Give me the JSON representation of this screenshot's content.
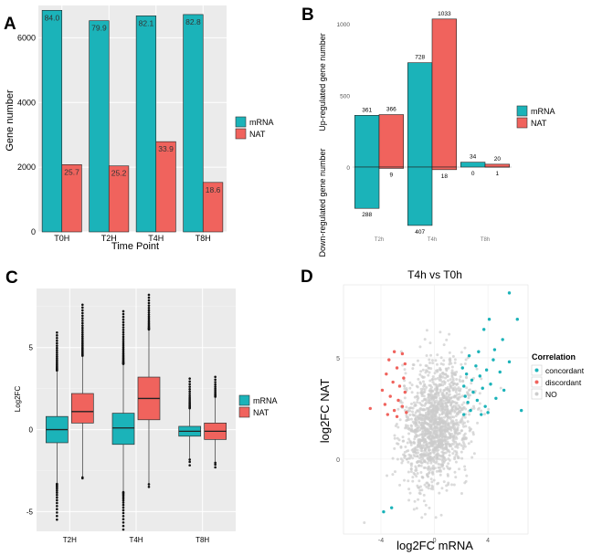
{
  "colors": {
    "mrna": "#1BB3B9",
    "nat": "#F0635D",
    "panel_bg": "#EBEBEB",
    "grid": "#FFFFFF",
    "grey_point": "#CCCCCC"
  },
  "chart_data": [
    {
      "panel": "A",
      "type": "bar",
      "xlabel": "Time Point",
      "ylabel": "Gene number",
      "ylim": [
        0,
        7000
      ],
      "yticks": [
        0,
        2000,
        4000,
        6000
      ],
      "categories": [
        "T0H",
        "T2H",
        "T4H",
        "T8H"
      ],
      "series": [
        {
          "name": "mRNA",
          "values": [
            6850,
            6530,
            6680,
            6720
          ],
          "labels": [
            "84.0",
            "79.9",
            "82.1",
            "82.8"
          ]
        },
        {
          "name": "NAT",
          "values": [
            2080,
            2040,
            2790,
            1530
          ],
          "labels": [
            "25.7",
            "25.2",
            "33.9",
            "18.6"
          ]
        }
      ],
      "legend": [
        "mRNA",
        "NAT"
      ]
    },
    {
      "panel": "B",
      "type": "bar",
      "ylabel_up": "Up-regulated gene number",
      "ylabel_down": "Down-regulated gene number",
      "yticks_up": [
        0,
        500,
        1000
      ],
      "categories": [
        "T2h",
        "T4h",
        "T8h"
      ],
      "series": [
        {
          "name": "mRNA",
          "up": [
            361,
            728,
            34
          ],
          "down": [
            288,
            407,
            0
          ]
        },
        {
          "name": "NAT",
          "up": [
            366,
            1033,
            20
          ],
          "down": [
            9,
            18,
            1
          ]
        }
      ],
      "legend": [
        "mRNA",
        "NAT"
      ]
    },
    {
      "panel": "C",
      "type": "boxplot",
      "ylabel": "Log2FC",
      "ylim": [
        -6.2,
        8.6
      ],
      "yticks": [
        -5,
        0,
        5
      ],
      "categories": [
        "T2H",
        "T4H",
        "T8H"
      ],
      "series": [
        {
          "name": "mRNA",
          "boxes": [
            {
              "q1": -0.8,
              "median": 0.0,
              "q3": 0.8,
              "wlo": -3.3,
              "whi": 3.6,
              "min": -5.6,
              "max": 6.0
            },
            {
              "q1": -0.9,
              "median": 0.1,
              "q3": 1.0,
              "wlo": -3.8,
              "whi": 4.0,
              "min": -6.2,
              "max": 7.3
            },
            {
              "q1": -0.4,
              "median": -0.1,
              "q3": 0.2,
              "wlo": -1.8,
              "whi": 1.3,
              "min": -2.3,
              "max": 3.2
            }
          ]
        },
        {
          "name": "NAT",
          "boxes": [
            {
              "q1": 0.4,
              "median": 1.1,
              "q3": 2.2,
              "wlo": -2.9,
              "whi": 4.5,
              "min": -3.0,
              "max": 7.7
            },
            {
              "q1": 0.6,
              "median": 1.9,
              "q3": 3.2,
              "wlo": -3.3,
              "whi": 6.1,
              "min": -3.6,
              "max": 8.3
            },
            {
              "q1": -0.6,
              "median": -0.1,
              "q3": 0.4,
              "wlo": -2.0,
              "whi": 2.0,
              "min": -2.4,
              "max": 3.3
            }
          ]
        }
      ],
      "legend": [
        "mRNA",
        "NAT"
      ]
    },
    {
      "panel": "D",
      "type": "scatter",
      "title": "T4h vs T0h",
      "xlabel": "log2FC mRNA",
      "ylabel": "log2FC NAT",
      "xlim": [
        -6.8,
        7.0
      ],
      "ylim": [
        -3.7,
        8.6
      ],
      "xticks": [
        -4,
        0,
        4
      ],
      "yticks": [
        0,
        5
      ],
      "legend_title": "Correlation",
      "groups": [
        {
          "name": "concordant",
          "points": [
            [
              5.6,
              8.2
            ],
            [
              6.2,
              6.9
            ],
            [
              4.1,
              6.9
            ],
            [
              3.7,
              6.4
            ],
            [
              5.1,
              5.9
            ],
            [
              4.5,
              5.4
            ],
            [
              3.3,
              5.3
            ],
            [
              2.6,
              5.1
            ],
            [
              4.4,
              4.9
            ],
            [
              5.6,
              4.8
            ],
            [
              3.1,
              4.6
            ],
            [
              2.1,
              4.5
            ],
            [
              3.9,
              4.4
            ],
            [
              4.9,
              4.3
            ],
            [
              2.4,
              4.2
            ],
            [
              3.4,
              4.1
            ],
            [
              2.8,
              3.9
            ],
            [
              4.2,
              3.7
            ],
            [
              2.2,
              3.6
            ],
            [
              3.6,
              3.5
            ],
            [
              5.2,
              3.4
            ],
            [
              2.9,
              3.3
            ],
            [
              2.3,
              3.1
            ],
            [
              4.6,
              3.0
            ],
            [
              3.2,
              2.9
            ],
            [
              2.5,
              2.8
            ],
            [
              3.8,
              2.6
            ],
            [
              6.5,
              2.4
            ],
            [
              2.7,
              2.4
            ],
            [
              4.0,
              2.3
            ],
            [
              2.2,
              2.2
            ],
            [
              3.5,
              2.2
            ],
            [
              -3.2,
              -2.4
            ],
            [
              -3.8,
              -2.6
            ]
          ]
        },
        {
          "name": "discordant",
          "points": [
            [
              -3.0,
              5.3
            ],
            [
              -2.4,
              5.2
            ],
            [
              -3.4,
              4.9
            ],
            [
              -2.2,
              4.7
            ],
            [
              -2.8,
              4.5
            ],
            [
              -3.6,
              4.2
            ],
            [
              -2.3,
              4.0
            ],
            [
              -3.1,
              3.8
            ],
            [
              -2.6,
              3.6
            ],
            [
              -3.9,
              3.4
            ],
            [
              -2.2,
              3.3
            ],
            [
              -3.3,
              3.1
            ],
            [
              -2.7,
              2.9
            ],
            [
              -3.7,
              2.7
            ],
            [
              -2.4,
              2.6
            ],
            [
              -3.0,
              2.4
            ],
            [
              -2.1,
              2.3
            ],
            [
              -3.5,
              2.2
            ],
            [
              -2.8,
              2.1
            ],
            [
              -4.8,
              2.5
            ]
          ]
        },
        {
          "name": "NO",
          "points": []
        }
      ]
    }
  ],
  "panel_labels": [
    "A",
    "B",
    "C",
    "D"
  ]
}
